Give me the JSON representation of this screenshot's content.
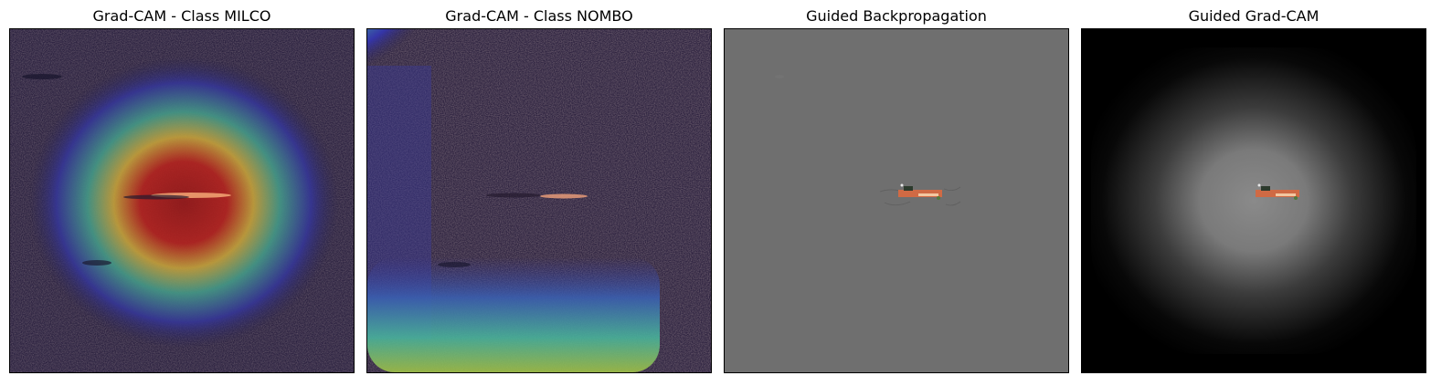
{
  "panels": [
    {
      "title": "Grad-CAM - Class MILCO"
    },
    {
      "title": "Grad-CAM - Class NOMBO"
    },
    {
      "title": "Guided Backpropagation"
    },
    {
      "title": "Guided Grad-CAM"
    }
  ],
  "colors": {
    "seafloor": "#2e2340",
    "guided_background": "#6f6f6f",
    "jet_red": "#c0161b",
    "jet_yellow": "#e3c43b",
    "jet_cyan": "#3fb7a3",
    "jet_blue": "#2c2c9a"
  }
}
